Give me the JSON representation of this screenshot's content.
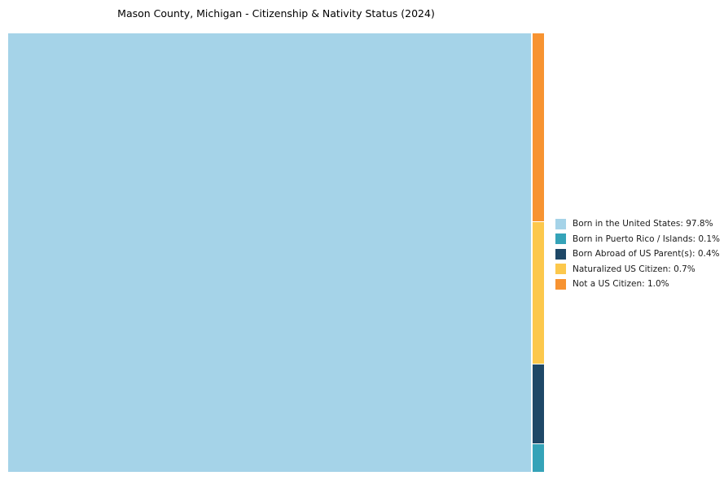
{
  "chart_data": {
    "type": "treemap",
    "title": "Mason County, Michigan - Citizenship & Nativity Status (2024)",
    "legend_position": "right",
    "segments": [
      {
        "label": "Born in the United States",
        "value": 97.8,
        "color": "#A5D3E8"
      },
      {
        "label": "Born in Puerto Rico / Islands",
        "value": 0.1,
        "color": "#35A3B8"
      },
      {
        "label": "Born Abroad of US Parent(s)",
        "value": 0.4,
        "color": "#1E4867"
      },
      {
        "label": "Naturalized US Citizen",
        "value": 0.7,
        "color": "#FCC84C"
      },
      {
        "label": "Not a US Citizen",
        "value": 1.0,
        "color": "#F79331"
      }
    ],
    "legend": [
      {
        "text": "Born in the United States: 97.8%",
        "color": "#A5D3E8"
      },
      {
        "text": "Born in Puerto Rico / Islands: 0.1%",
        "color": "#35A3B8"
      },
      {
        "text": "Born Abroad of US Parent(s): 0.4%",
        "color": "#1E4867"
      },
      {
        "text": "Naturalized US Citizen: 0.7%",
        "color": "#FCC84C"
      },
      {
        "text": "Not a US Citizen: 1.0%",
        "color": "#F79331"
      }
    ]
  }
}
